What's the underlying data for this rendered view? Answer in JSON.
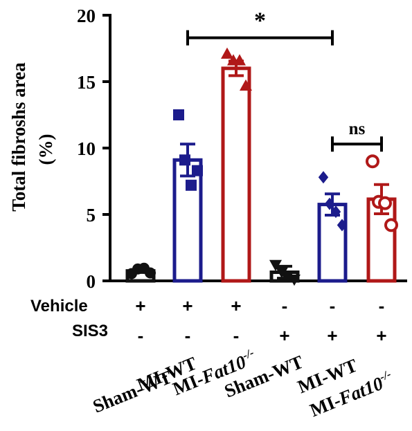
{
  "chart_data": {
    "type": "bar",
    "ylabel_line1": "Total fibroshs area",
    "ylabel_line2": "(%)",
    "ylim": [
      0,
      20
    ],
    "yticks": [
      "0",
      "5",
      "10",
      "15",
      "20"
    ],
    "grid": false,
    "colors": {
      "black": "#111111",
      "blue": "#1c1c8c",
      "red": "#b01818"
    },
    "bars": [
      {
        "label": "Sham-WT",
        "mean": 0.75,
        "sem": 0.12,
        "color": "black",
        "marker": "circle-filled",
        "points": [
          0.55,
          0.9,
          0.95,
          0.6
        ]
      },
      {
        "label": "MI-WT",
        "mean": 9.1,
        "sem": 1.2,
        "color": "blue",
        "marker": "square-filled",
        "points": [
          12.5,
          9.1,
          7.2,
          8.3
        ]
      },
      {
        "label": "MI-Fat10-/-",
        "mean": 16.0,
        "sem": 0.55,
        "color": "red",
        "marker": "triangle-up-filled",
        "points": [
          17.1,
          16.6,
          16.6,
          14.7
        ]
      },
      {
        "label": "Sham-WT",
        "mean": 0.65,
        "sem": 0.45,
        "color": "black",
        "marker": "triangle-down-filled",
        "points": [
          1.2,
          0.65,
          0.4,
          0.1
        ]
      },
      {
        "label": "MI-WT",
        "mean": 5.75,
        "sem": 0.8,
        "color": "blue",
        "marker": "diamond-filled",
        "points": [
          7.8,
          5.8,
          5.2,
          4.2
        ]
      },
      {
        "label": "MI-Fat10-/-",
        "mean": 6.15,
        "sem": 1.1,
        "color": "red",
        "marker": "circle-open",
        "points": [
          9.0,
          5.95,
          5.85,
          4.2
        ]
      }
    ],
    "row_labels": {
      "vehicle": "Vehicle",
      "sis3": "SIS3"
    },
    "vehicle_signs": [
      "+",
      "+",
      "+",
      "-",
      "-",
      "-"
    ],
    "sis3_signs": [
      "-",
      "-",
      "-",
      "+",
      "+",
      "+"
    ],
    "group_labels": {
      "sham_wt": "Sham-WT",
      "mi_wt": "MI-WT",
      "mi": "MI-",
      "fat10": "Fat10",
      "ko": "-/-"
    },
    "annotations": [
      {
        "text": "*",
        "from_bar": 1,
        "to_bar": 4,
        "level": 18.3
      },
      {
        "text": "ns",
        "from_bar": 4,
        "to_bar": 5,
        "level": 10.3
      }
    ]
  }
}
